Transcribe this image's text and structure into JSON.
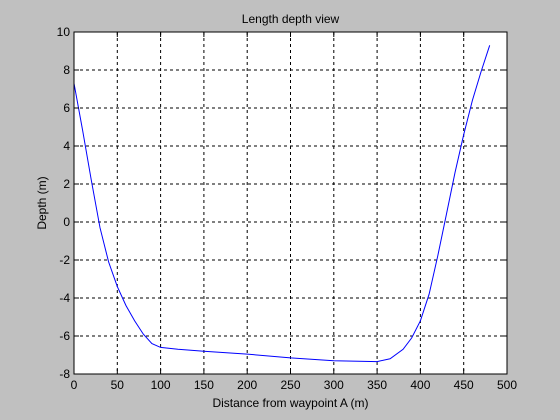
{
  "chart_data": {
    "type": "line",
    "title": "Length depth view",
    "xlabel": "Distance from waypoint A (m)",
    "ylabel": "Depth (m)",
    "xlim": [
      0,
      500
    ],
    "ylim": [
      -8,
      10
    ],
    "xticks": [
      0,
      50,
      100,
      150,
      200,
      250,
      300,
      350,
      400,
      450,
      500
    ],
    "yticks": [
      -8,
      -6,
      -4,
      -2,
      0,
      2,
      4,
      6,
      8,
      10
    ],
    "grid": true,
    "line_color": "#0000ff",
    "series": [
      {
        "x": [
          0,
          10,
          20,
          30,
          40,
          50,
          60,
          70,
          80,
          90,
          100,
          120,
          150,
          200,
          250,
          300,
          350,
          365,
          380,
          390,
          400,
          410,
          420,
          430,
          440,
          450,
          460,
          470,
          480
        ],
        "y": [
          7.3,
          4.8,
          2.2,
          -0.3,
          -2.1,
          -3.4,
          -4.4,
          -5.2,
          -5.9,
          -6.4,
          -6.6,
          -6.7,
          -6.8,
          -6.95,
          -7.15,
          -7.3,
          -7.35,
          -7.2,
          -6.7,
          -6.1,
          -5.2,
          -3.8,
          -1.8,
          0.4,
          2.6,
          4.6,
          6.4,
          7.9,
          9.3
        ]
      }
    ]
  }
}
